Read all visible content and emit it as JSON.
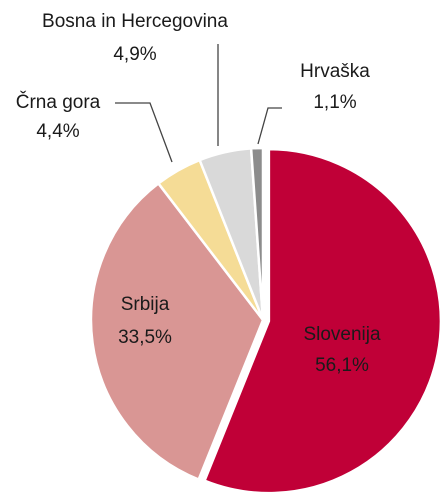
{
  "chart_data": {
    "type": "pie",
    "categories": [
      "Slovenija",
      "Srbija",
      "Črna gora",
      "Bosna in Hercegovina",
      "Hrvaška"
    ],
    "values": [
      56.1,
      33.5,
      4.4,
      4.9,
      1.1
    ],
    "value_labels": [
      "56,1%",
      "33,5%",
      "4,4%",
      "4,9%",
      "1,1%"
    ],
    "colors": [
      "#c00037",
      "#d99694",
      "#f5dc96",
      "#d9d9d9",
      "#8c8c8c"
    ]
  }
}
